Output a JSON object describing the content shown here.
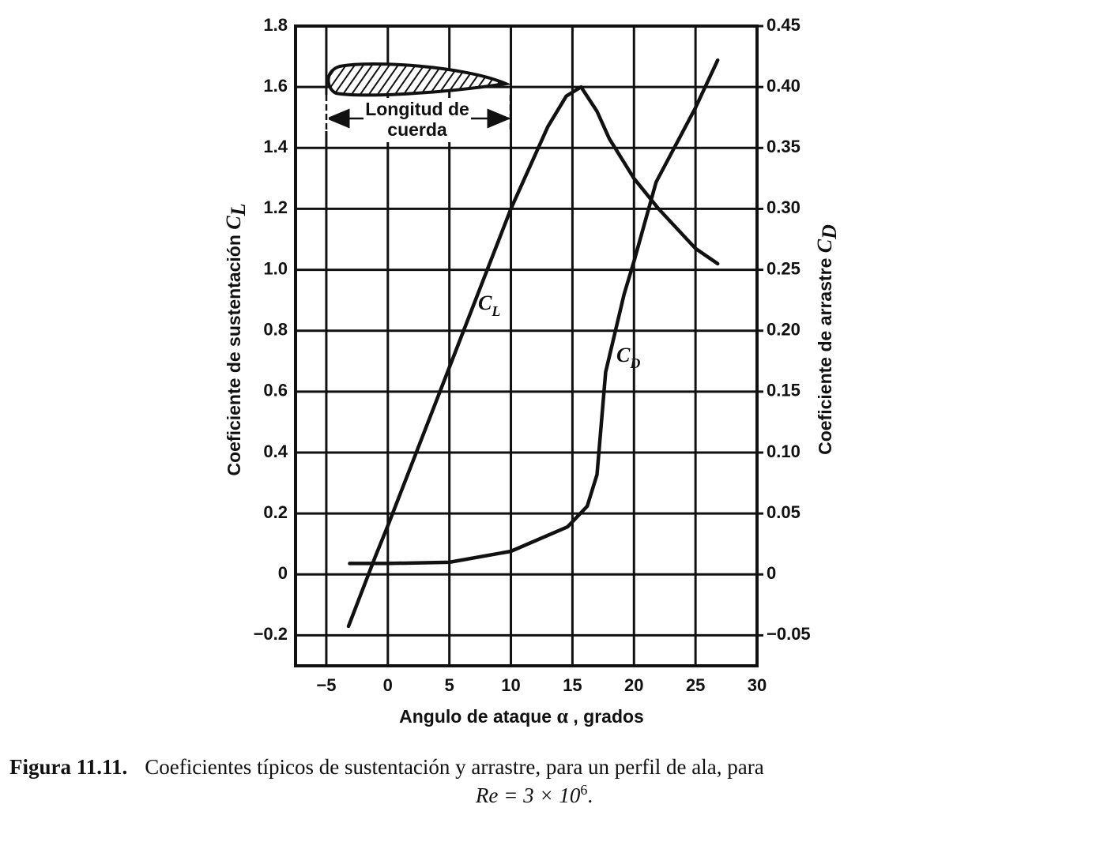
{
  "chart_data": {
    "type": "line",
    "x_label": {
      "text": "Angulo de ataque",
      "symbol": "α",
      "unit": ", grados"
    },
    "y_label": {
      "text": "Coeficiente de sustentación",
      "symbol": "C",
      "subscript": "L"
    },
    "y2_label": {
      "text": "Coeficiente de arrastre",
      "symbol": "C",
      "subscript": "D"
    },
    "xlim": [
      -7.5,
      30
    ],
    "ylim": [
      -0.3,
      1.8
    ],
    "y2lim": [
      -0.075,
      0.45
    ],
    "xticks": [
      {
        "value": -5,
        "label": "−5"
      },
      0,
      5,
      10,
      15,
      20,
      25,
      30
    ],
    "yticks": [
      {
        "value": -0.2,
        "label": "−0.2"
      },
      0,
      0.2,
      0.4,
      0.6,
      0.8,
      {
        "value": 1,
        "label": "1.0"
      },
      1.2,
      1.4,
      1.6,
      1.8
    ],
    "y2ticks": [
      {
        "value": -0.05,
        "label": "−0.05"
      },
      0,
      0.05,
      {
        "value": 0.1,
        "label": "0.10"
      },
      0.15,
      {
        "value": 0.2,
        "label": "0.20"
      },
      0.25,
      {
        "value": 0.3,
        "label": "0.30"
      },
      0.35,
      {
        "value": 0.4,
        "label": "0.40"
      },
      0.45
    ],
    "grid": true,
    "series": [
      {
        "name": "C_L",
        "color": "#111111",
        "x": [
          -3.2,
          -1,
          0,
          5,
          10,
          13,
          14.5,
          15.7,
          17,
          18,
          20,
          22,
          25,
          26.8
        ],
        "values": [
          -0.17,
          0.06,
          0.16,
          0.68,
          1.2,
          1.47,
          1.57,
          1.6,
          1.52,
          1.43,
          1.3,
          1.2,
          1.07,
          1.02
        ]
      },
      {
        "name": "C_D",
        "color": "#111111",
        "axis": "y2",
        "x": [
          -3.1,
          0,
          5,
          10,
          14.6,
          16.2,
          17,
          17.7,
          19.2,
          20,
          21.8,
          25,
          26.8
        ],
        "values": [
          0.009,
          0.009,
          0.01,
          0.019,
          0.039,
          0.056,
          0.082,
          0.166,
          0.23,
          0.257,
          0.322,
          0.383,
          0.422
        ]
      }
    ],
    "annotations": [
      {
        "symbol": "C",
        "subscript": "L"
      },
      {
        "symbol": "C",
        "subscript": "D"
      }
    ],
    "chord_label": [
      "Longitud de",
      "cuerda"
    ]
  },
  "caption": {
    "label": "Figura 11.11.",
    "text": "Coeficientes típicos de sustentación y arrastre, para un perfil de ala, para",
    "formula": "Re = 3 × 10",
    "exponent": "6",
    "end": "."
  }
}
